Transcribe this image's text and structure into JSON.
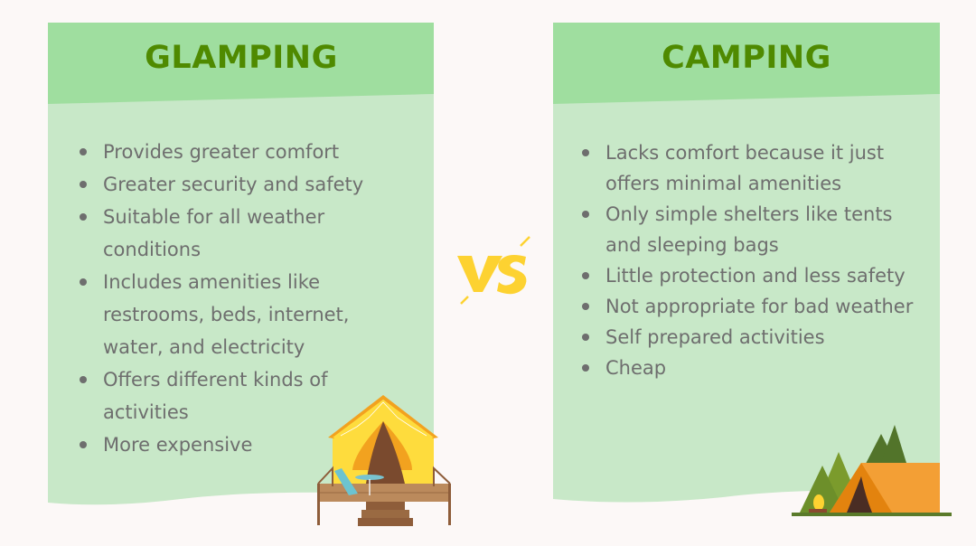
{
  "colors": {
    "background": "#fcf8f7",
    "header": "#9fde9f",
    "body": "#c8e8c8",
    "title": "#4f8a00",
    "text": "#6e6e6e",
    "vs": "#fdd231"
  },
  "glamping": {
    "title": "GLAMPING",
    "items": [
      "Provides greater comfort",
      "Greater security and safety",
      "Suitable for all weather conditions",
      "Includes amenities like restrooms, beds, internet, water, and electricity",
      "Offers different kinds of activities",
      "More expensive"
    ],
    "illustration": "glamping-tent-on-deck-icon"
  },
  "vs": {
    "label": "VS"
  },
  "camping": {
    "title": "CAMPING",
    "items": [
      "Lacks comfort because it just offers minimal amenities",
      "Only simple shelters like tents and sleeping bags",
      "Little protection and less safety",
      "Not appropriate for bad weather",
      "Self prepared activities",
      "Cheap"
    ],
    "illustration": "camping-tent-forest-icon"
  }
}
